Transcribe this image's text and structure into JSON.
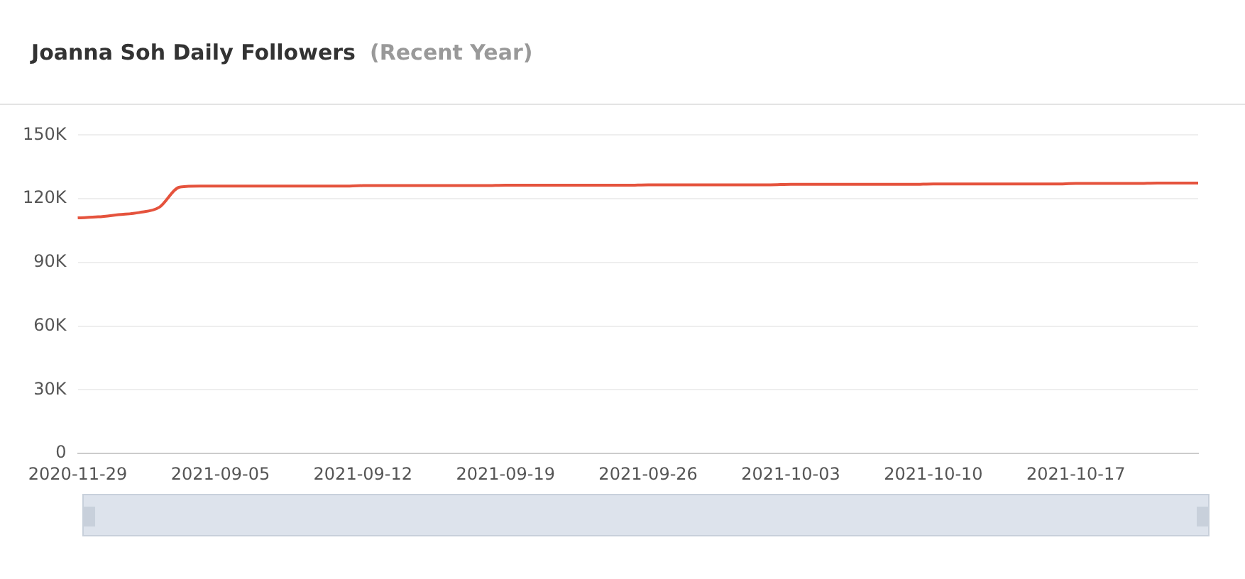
{
  "chart_data": {
    "type": "line",
    "title": "Joanna Soh Daily Followers",
    "subtitle": "(Recent Year)",
    "categories": [
      "2020-11-29",
      null,
      null,
      null,
      null,
      null,
      null,
      "2021-09-05",
      null,
      null,
      null,
      null,
      null,
      null,
      "2021-09-12",
      null,
      null,
      null,
      null,
      null,
      null,
      "2021-09-19",
      null,
      null,
      null,
      null,
      null,
      null,
      "2021-09-26",
      null,
      null,
      null,
      null,
      null,
      null,
      "2021-10-03",
      null,
      null,
      null,
      null,
      null,
      null,
      "2021-10-10",
      null,
      null,
      null,
      null,
      null,
      null,
      "2021-10-17",
      null,
      null,
      null,
      null,
      null,
      null
    ],
    "series": [
      {
        "color": "#e5533d",
        "values": [
          111000,
          111500,
          112500,
          113500,
          116000,
          125500,
          126000,
          126000,
          126000,
          126000,
          126000,
          126000,
          126000,
          126000,
          126200,
          126200,
          126200,
          126200,
          126200,
          126200,
          126200,
          126400,
          126400,
          126400,
          126400,
          126400,
          126400,
          126400,
          126600,
          126600,
          126600,
          126600,
          126600,
          126600,
          126600,
          126800,
          126800,
          126800,
          126800,
          126800,
          126800,
          126800,
          127000,
          127000,
          127000,
          127000,
          127000,
          127000,
          127000,
          127200,
          127200,
          127200,
          127200,
          127400,
          127400,
          127400
        ]
      }
    ],
    "ylim": [
      0,
      150000
    ],
    "yticks": [
      {
        "value": 0,
        "label": "0"
      },
      {
        "value": 30000,
        "label": "30K"
      },
      {
        "value": 60000,
        "label": "60K"
      },
      {
        "value": 90000,
        "label": "90K"
      },
      {
        "value": 120000,
        "label": "120K"
      },
      {
        "value": 150000,
        "label": "150K"
      }
    ],
    "grid": "y",
    "legend": false,
    "marker": "none",
    "line_style": "solid"
  }
}
